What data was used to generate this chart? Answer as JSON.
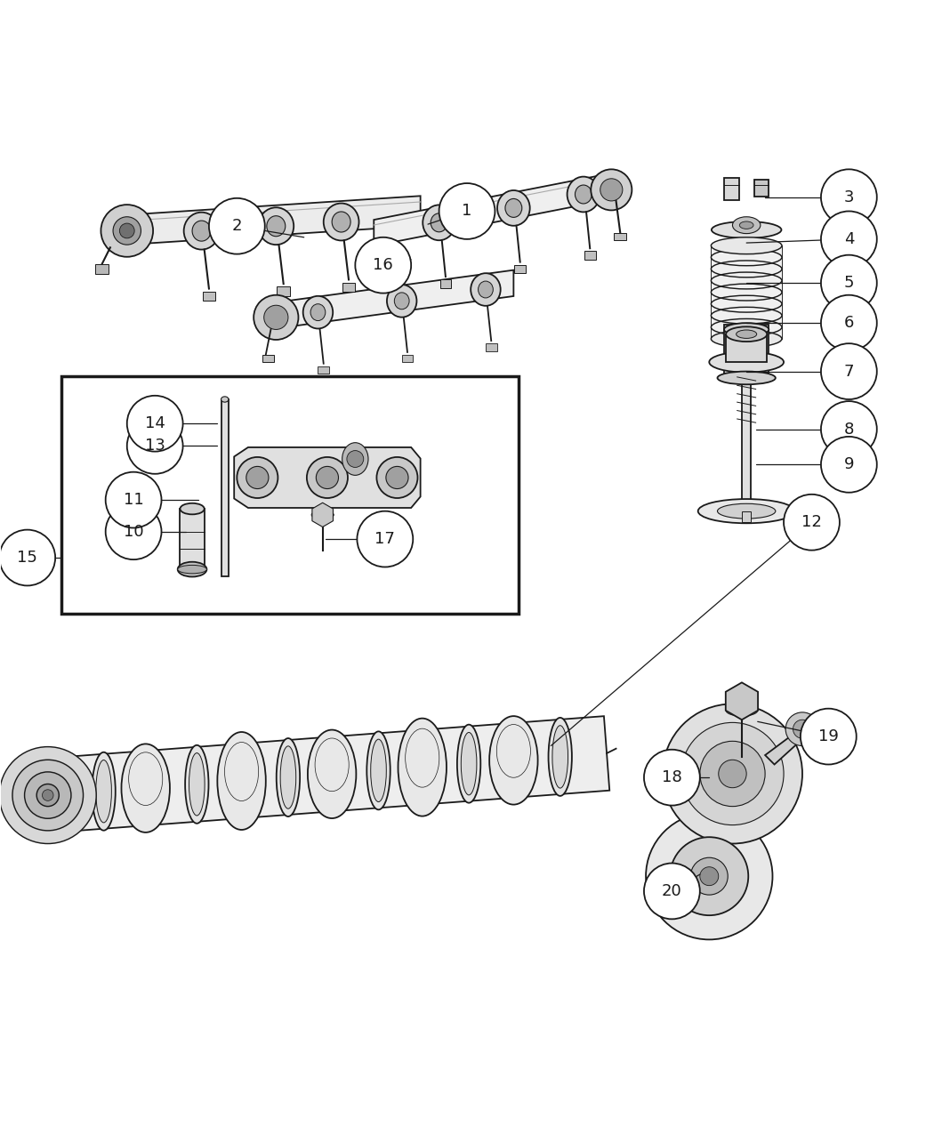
{
  "bg_color": "#ffffff",
  "line_color": "#1a1a1a",
  "fig_width": 10.5,
  "fig_height": 12.75,
  "dpi": 100,
  "label_r": 0.03,
  "label_fontsize": 13,
  "leaders": [
    [
      1,
      0.5,
      0.882,
      0.458,
      0.868
    ],
    [
      2,
      0.253,
      0.866,
      0.325,
      0.854
    ],
    [
      3,
      0.91,
      0.897,
      0.82,
      0.897
    ],
    [
      4,
      0.91,
      0.852,
      0.8,
      0.848
    ],
    [
      5,
      0.91,
      0.805,
      0.8,
      0.805
    ],
    [
      6,
      0.91,
      0.762,
      0.8,
      0.762
    ],
    [
      7,
      0.91,
      0.71,
      0.8,
      0.71
    ],
    [
      8,
      0.91,
      0.648,
      0.81,
      0.648
    ],
    [
      9,
      0.91,
      0.61,
      0.81,
      0.61
    ],
    [
      10,
      0.142,
      0.538,
      0.198,
      0.538
    ],
    [
      11,
      0.142,
      0.572,
      0.212,
      0.572
    ],
    [
      12,
      0.87,
      0.548,
      0.59,
      0.308
    ],
    [
      13,
      0.165,
      0.63,
      0.232,
      0.63
    ],
    [
      14,
      0.165,
      0.654,
      0.232,
      0.654
    ],
    [
      15,
      0.028,
      0.51,
      0.065,
      0.51
    ],
    [
      16,
      0.41,
      0.824,
      0.44,
      0.83
    ],
    [
      17,
      0.412,
      0.53,
      0.348,
      0.53
    ],
    [
      18,
      0.72,
      0.274,
      0.76,
      0.274
    ],
    [
      19,
      0.888,
      0.318,
      0.812,
      0.334
    ],
    [
      20,
      0.72,
      0.152,
      0.75,
      0.17
    ]
  ]
}
